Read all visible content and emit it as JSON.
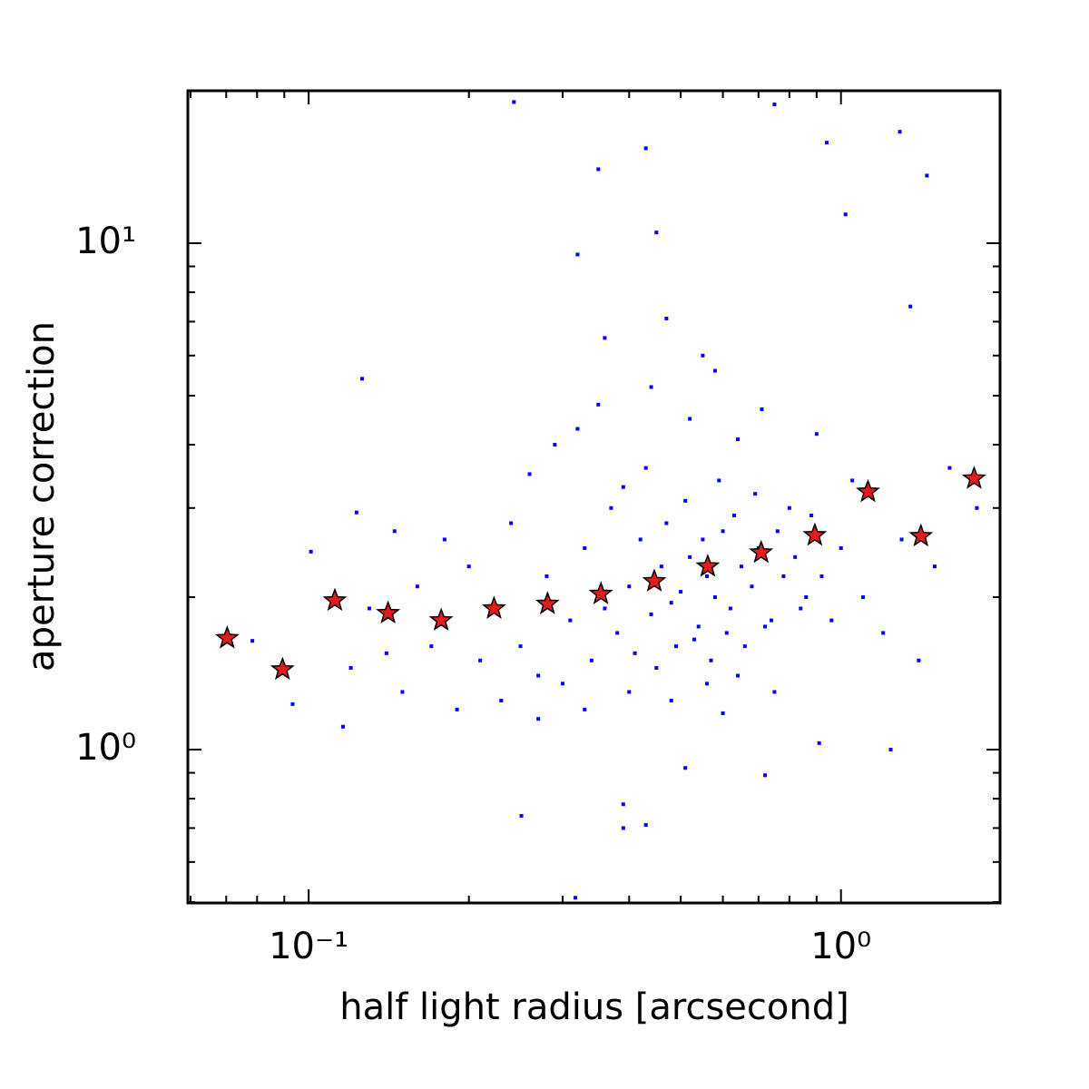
{
  "chart_data": {
    "type": "scatter",
    "x_label": "half light radius [arcsecond]",
    "y_label": "aperture correction",
    "xscale": "log",
    "yscale": "log",
    "xlim": [
      0.0593,
      1.99
    ],
    "ylim": [
      0.498,
      20.0
    ],
    "xticks": [
      {
        "value": 0.1,
        "label": "10⁻¹"
      },
      {
        "value": 1,
        "label": "10⁰"
      }
    ],
    "yticks": [
      {
        "value": 1,
        "label": "10⁰"
      },
      {
        "value": 10,
        "label": "10¹"
      }
    ],
    "xminorticks": [
      0.06,
      0.07,
      0.08,
      0.09,
      0.2,
      0.3,
      0.4,
      0.5,
      0.6,
      0.7,
      0.8,
      0.9
    ],
    "yminorticks": [
      0.5,
      0.6,
      0.7,
      0.8,
      0.9,
      2,
      3,
      4,
      5,
      6,
      7,
      8,
      9
    ],
    "series": [
      {
        "marker": "square",
        "color": "#0000ff",
        "x": [
          0.243,
          0.75,
          1.29,
          0.94,
          0.43,
          0.35,
          1.45,
          1.02,
          0.126,
          0.0933,
          0.116,
          0.251,
          0.39,
          0.39,
          0.43,
          0.317,
          1.24,
          0.91,
          0.72,
          0.51,
          0.0784,
          0.101,
          0.123,
          0.25,
          0.28,
          0.31,
          0.33,
          0.36,
          0.38,
          0.4,
          0.42,
          0.44,
          0.46,
          0.48,
          0.5,
          0.52,
          0.54,
          0.56,
          0.58,
          0.6,
          0.62,
          0.65,
          0.68,
          0.7,
          0.74,
          0.78,
          0.82,
          0.86,
          0.22,
          0.2,
          0.21,
          0.24,
          0.27,
          0.3,
          0.34,
          0.37,
          0.39,
          0.41,
          0.43,
          0.45,
          0.47,
          0.49,
          0.51,
          0.53,
          0.55,
          0.57,
          0.59,
          0.61,
          0.63,
          0.66,
          0.69,
          0.72,
          0.76,
          0.8,
          0.84,
          0.88,
          0.92,
          0.96,
          1.0,
          1.05,
          1.1,
          1.2,
          1.3,
          1.5,
          1.6,
          0.17,
          0.16,
          0.15,
          0.18,
          0.19,
          0.23,
          0.26,
          0.29,
          0.32,
          0.35,
          0.44,
          0.52,
          0.58,
          0.64,
          0.71,
          0.9,
          0.36,
          0.47,
          0.55,
          0.4,
          0.48,
          0.56,
          0.64,
          0.75,
          0.33,
          0.27,
          0.6,
          0.13,
          0.12,
          0.145,
          0.14,
          1.4,
          1.8,
          1.35,
          0.45,
          0.32
        ],
        "y": [
          19.0,
          18.8,
          16.6,
          15.8,
          15.4,
          14.0,
          13.6,
          11.4,
          5.4,
          1.23,
          1.11,
          0.74,
          0.78,
          0.7,
          0.71,
          0.51,
          1.0,
          1.03,
          0.89,
          0.92,
          1.64,
          2.46,
          2.94,
          1.6,
          2.2,
          1.8,
          2.5,
          1.9,
          1.7,
          2.1,
          2.6,
          1.85,
          2.3,
          1.95,
          2.05,
          2.4,
          1.75,
          2.2,
          2.0,
          2.7,
          1.9,
          2.3,
          2.1,
          2.5,
          1.8,
          2.2,
          2.4,
          2.0,
          1.9,
          2.3,
          1.5,
          2.8,
          1.4,
          1.35,
          1.5,
          3.0,
          3.3,
          1.55,
          3.6,
          1.45,
          2.8,
          1.6,
          3.1,
          1.65,
          2.6,
          1.5,
          3.4,
          1.7,
          2.9,
          1.6,
          3.2,
          1.75,
          2.7,
          3.0,
          1.9,
          2.9,
          2.2,
          1.8,
          2.5,
          3.4,
          2.0,
          1.7,
          2.6,
          2.3,
          3.6,
          1.6,
          2.1,
          1.3,
          2.6,
          1.2,
          1.25,
          3.5,
          4.0,
          4.3,
          4.8,
          5.2,
          4.5,
          5.6,
          4.1,
          4.7,
          4.2,
          6.5,
          7.1,
          6.0,
          1.3,
          1.25,
          1.35,
          1.4,
          1.3,
          1.2,
          1.15,
          1.18,
          1.9,
          1.45,
          2.7,
          1.55,
          1.5,
          3.0,
          7.5,
          10.5,
          9.5
        ]
      },
      {
        "marker": "star",
        "color": "#e41a1c",
        "x": [
          0.0703,
          0.0893,
          0.112,
          0.141,
          0.1774,
          0.223,
          0.281,
          0.354,
          0.446,
          0.562,
          0.708,
          0.893,
          1.124,
          1.413,
          1.779
        ],
        "y": [
          1.66,
          1.44,
          1.97,
          1.86,
          1.8,
          1.9,
          1.94,
          2.03,
          2.15,
          2.3,
          2.45,
          2.65,
          3.23,
          2.64,
          3.43
        ]
      }
    ]
  }
}
